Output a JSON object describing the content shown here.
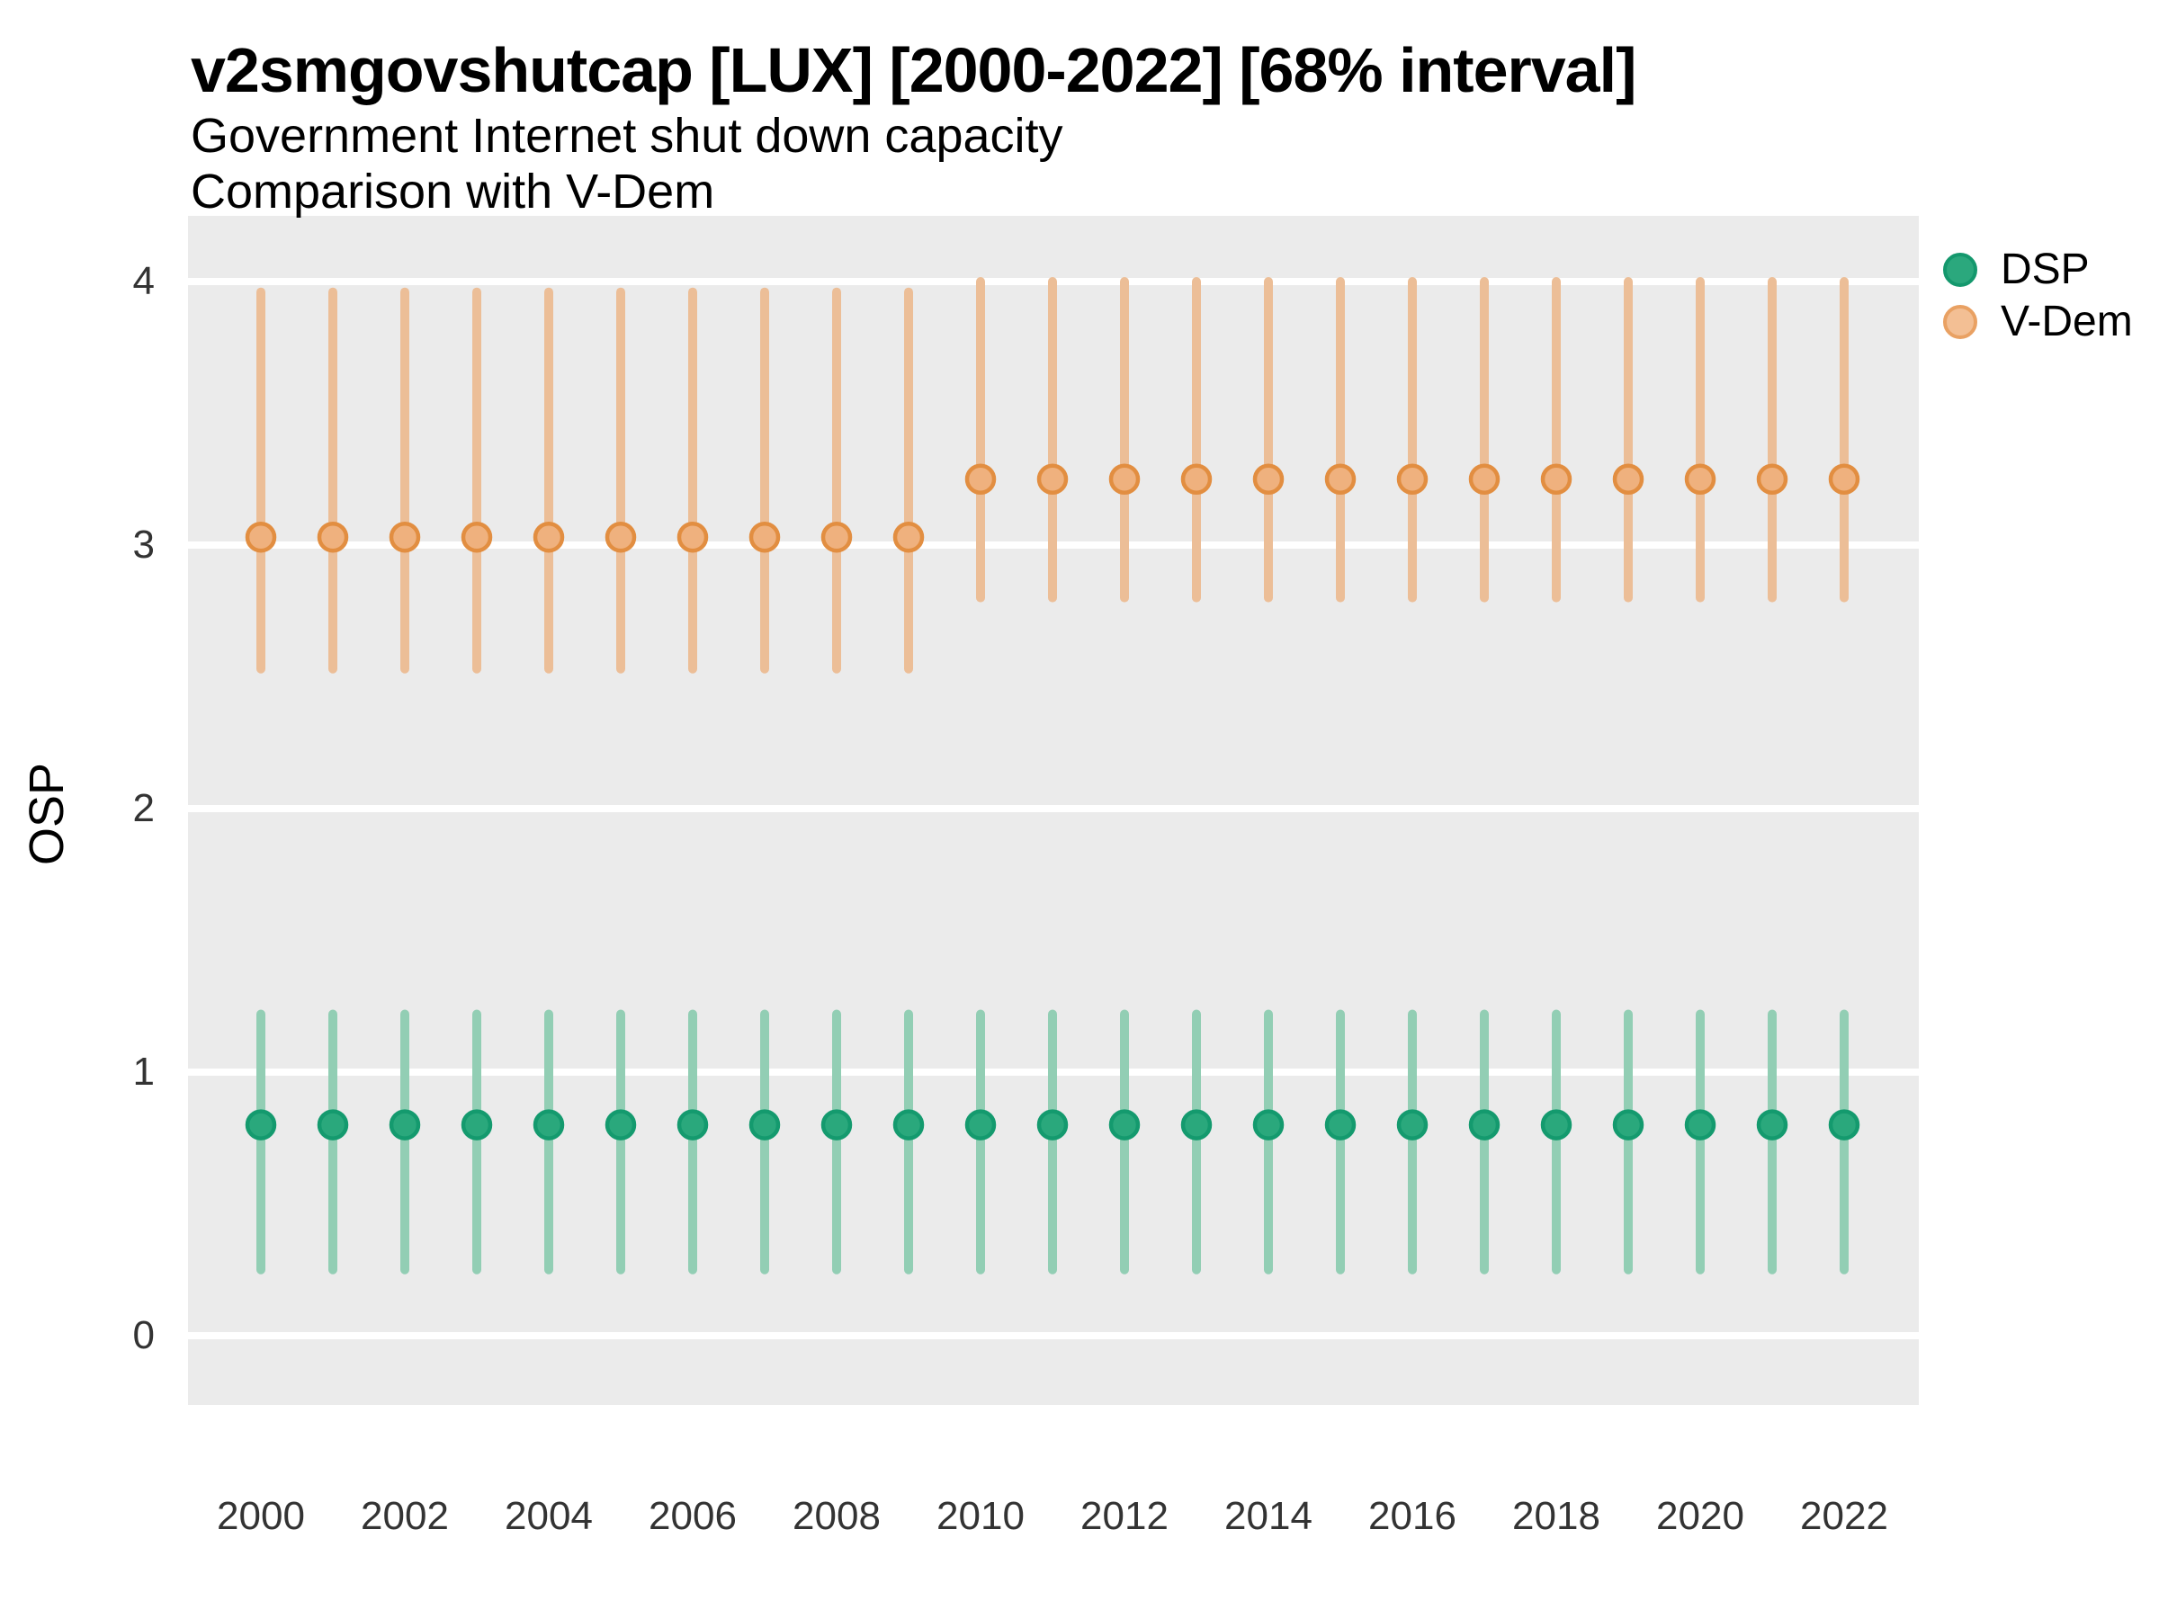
{
  "title": "v2smgovshutcap [LUX] [2000-2022] [68% interval]",
  "subtitle1": "Government Internet shut down capacity",
  "subtitle2": "Comparison with V-Dem",
  "ylabel": "OSP",
  "colors": {
    "background": "#FFFFFF",
    "panel_bg": "#EBEBEB",
    "grid": "#FFFFFF",
    "tick_label": "#333333",
    "dsp_green": "#2AA87C",
    "vdem_orange": "#EFB17E"
  },
  "legend": [
    {
      "label": "DSP",
      "swatch_fill": "#2BA87D",
      "swatch_stroke": "#14986D"
    },
    {
      "label": "V-Dem",
      "swatch_fill": "#F3BF94",
      "swatch_stroke": "#E9A163"
    }
  ],
  "chart_data": {
    "type": "scatter",
    "mark": "pointrange",
    "title": "v2smgovshutcap [LUX] [2000-2022] [68% interval]",
    "subtitle": [
      "Government Internet shut down capacity",
      "Comparison with V-Dem"
    ],
    "xlabel": "",
    "ylabel": "OSP",
    "interval": "68%",
    "grid": "horizontal-major-only",
    "legend_position": "right",
    "xlim": [
      1999,
      2023
    ],
    "ylim": [
      -0.27,
      4.26
    ],
    "y_ticks": [
      0,
      1,
      2,
      3,
      4
    ],
    "x": [
      2000,
      2001,
      2002,
      2003,
      2004,
      2005,
      2006,
      2007,
      2008,
      2009,
      2010,
      2011,
      2012,
      2013,
      2014,
      2015,
      2016,
      2017,
      2018,
      2019,
      2020,
      2021,
      2022
    ],
    "x_tick_labels": [
      "2000",
      "2002",
      "2004",
      "2006",
      "2008",
      "2010",
      "2012",
      "2014",
      "2016",
      "2018",
      "2020",
      "2022"
    ],
    "series": [
      {
        "name": "DSP",
        "fill_color": "#2AA87C",
        "stroke_color": "#149A6E",
        "bar_color": "#92CEB4",
        "values": [
          0.8,
          0.8,
          0.8,
          0.8,
          0.8,
          0.8,
          0.8,
          0.8,
          0.8,
          0.8,
          0.8,
          0.8,
          0.8,
          0.8,
          0.8,
          0.8,
          0.8,
          0.8,
          0.8,
          0.8,
          0.8,
          0.8,
          0.8
        ],
        "lower": [
          0.25,
          0.25,
          0.25,
          0.25,
          0.25,
          0.25,
          0.25,
          0.25,
          0.25,
          0.25,
          0.25,
          0.25,
          0.25,
          0.25,
          0.25,
          0.25,
          0.25,
          0.25,
          0.25,
          0.25,
          0.25,
          0.25,
          0.25
        ],
        "upper": [
          1.22,
          1.22,
          1.22,
          1.22,
          1.22,
          1.22,
          1.22,
          1.22,
          1.22,
          1.22,
          1.22,
          1.22,
          1.22,
          1.22,
          1.22,
          1.22,
          1.22,
          1.22,
          1.22,
          1.22,
          1.22,
          1.22,
          1.22
        ]
      },
      {
        "name": "V-Dem",
        "fill_color": "#EFB17E",
        "stroke_color": "#E28E41",
        "bar_color": "#ECBE97",
        "values": [
          3.03,
          3.03,
          3.03,
          3.03,
          3.03,
          3.03,
          3.03,
          3.03,
          3.03,
          3.03,
          3.25,
          3.25,
          3.25,
          3.25,
          3.25,
          3.25,
          3.25,
          3.25,
          3.25,
          3.25,
          3.25,
          3.25,
          3.25
        ],
        "lower": [
          2.53,
          2.53,
          2.53,
          2.53,
          2.53,
          2.53,
          2.53,
          2.53,
          2.53,
          2.53,
          2.8,
          2.8,
          2.8,
          2.8,
          2.8,
          2.8,
          2.8,
          2.8,
          2.8,
          2.8,
          2.8,
          2.8,
          2.8
        ],
        "upper": [
          3.96,
          3.96,
          3.96,
          3.96,
          3.96,
          3.96,
          3.96,
          3.96,
          3.96,
          3.96,
          4.0,
          4.0,
          4.0,
          4.0,
          4.0,
          4.0,
          4.0,
          4.0,
          4.0,
          4.0,
          4.0,
          4.0,
          4.0
        ]
      }
    ]
  }
}
